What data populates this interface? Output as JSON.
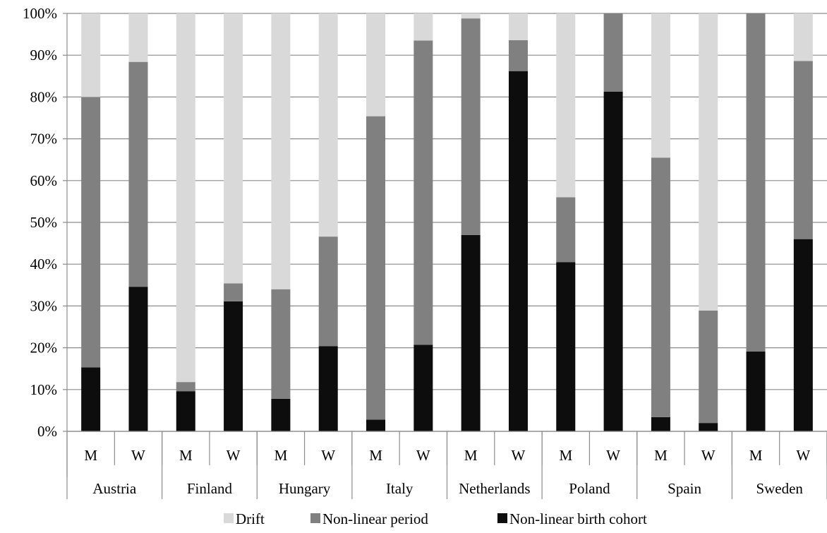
{
  "chart_data": {
    "type": "bar",
    "stacked": true,
    "percent": true,
    "ylim": [
      0,
      100
    ],
    "ytick_labels": [
      "0%",
      "10%",
      "20%",
      "30%",
      "40%",
      "50%",
      "60%",
      "70%",
      "80%",
      "90%",
      "100%"
    ],
    "grid": true,
    "legend_position": "bottom",
    "groups": [
      "Austria",
      "Finland",
      "Hungary",
      "Italy",
      "Netherlands",
      "Poland",
      "Spain",
      "Sweden"
    ],
    "categories": [
      "M",
      "W",
      "M",
      "W",
      "M",
      "W",
      "M",
      "W",
      "M",
      "W",
      "M",
      "W",
      "M",
      "W",
      "M",
      "W"
    ],
    "series": [
      {
        "name": "Non-linear birth cohort",
        "color": "#0d0d0d",
        "values": [
          15.3,
          34.6,
          9.6,
          31.1,
          7.8,
          20.4,
          2.8,
          20.7,
          47.0,
          86.2,
          40.5,
          81.3,
          3.4,
          2.0,
          19.1,
          46.0
        ]
      },
      {
        "name": "Non-linear period",
        "color": "#808080",
        "values": [
          64.7,
          53.8,
          2.2,
          4.3,
          26.2,
          26.2,
          72.6,
          72.8,
          51.8,
          7.4,
          15.5,
          18.7,
          62.1,
          26.9,
          80.9,
          42.6
        ]
      },
      {
        "name": "Drift",
        "color": "#d9d9d9",
        "values": [
          20.0,
          11.6,
          88.2,
          64.6,
          66.0,
          53.4,
          24.6,
          6.5,
          1.2,
          6.4,
          44.0,
          0.0,
          34.5,
          71.1,
          0.0,
          11.4
        ]
      }
    ],
    "legend": [
      {
        "label": "Drift",
        "color": "#d9d9d9"
      },
      {
        "label": "Non-linear period",
        "color": "#808080"
      },
      {
        "label": "Non-linear birth cohort",
        "color": "#0d0d0d"
      }
    ]
  }
}
